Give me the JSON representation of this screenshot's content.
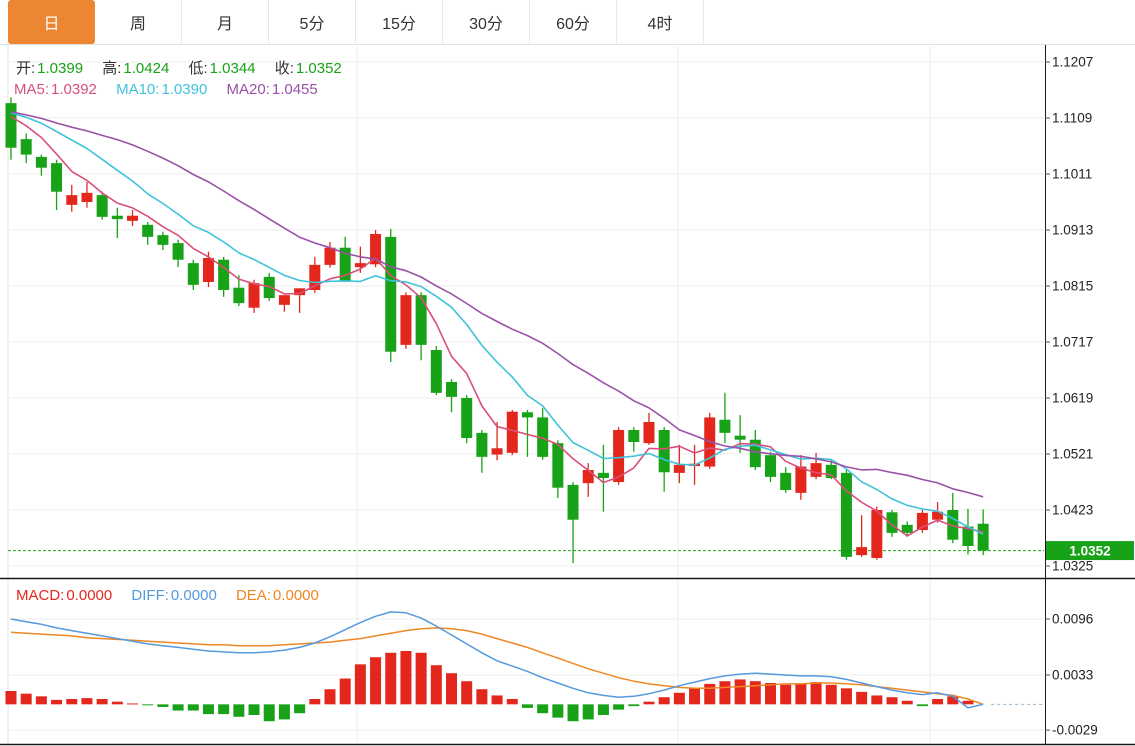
{
  "tabs": {
    "items": [
      {
        "label": "日",
        "active": true
      },
      {
        "label": "周",
        "active": false
      },
      {
        "label": "月",
        "active": false
      },
      {
        "label": "5分",
        "active": false
      },
      {
        "label": "15分",
        "active": false
      },
      {
        "label": "30分",
        "active": false
      },
      {
        "label": "60分",
        "active": false
      },
      {
        "label": "4时",
        "active": false
      }
    ]
  },
  "readout": {
    "ohlc": [
      {
        "label": "开:",
        "value": "1.0399"
      },
      {
        "label": "高:",
        "value": "1.0424"
      },
      {
        "label": "低:",
        "value": "1.0344"
      },
      {
        "label": "收:",
        "value": "1.0352"
      }
    ],
    "ma": [
      {
        "label": "MA5:",
        "value": "1.0392"
      },
      {
        "label": "MA10:",
        "value": "1.0390"
      },
      {
        "label": "MA20:",
        "value": "1.0455"
      }
    ],
    "macd": [
      {
        "label": "MACD:",
        "value": "0.0000"
      },
      {
        "label": "DIFF:",
        "value": "0.0000"
      },
      {
        "label": "DEA:",
        "value": "0.0000"
      }
    ]
  },
  "price_axis": {
    "tick_labels": [
      "1.1207",
      "1.1109",
      "1.1011",
      "1.0913",
      "1.0815",
      "1.0717",
      "1.0619",
      "1.0521",
      "1.0423",
      "1.0325"
    ],
    "current_badge": "1.0352"
  },
  "macd_axis": {
    "tick_labels": [
      "0.0096",
      "0.0033",
      "-0.0029"
    ]
  },
  "colors": {
    "up": "#e3271d",
    "down": "#18a218",
    "active_tab": "#ed8633",
    "ma5": "#d94f7a",
    "ma10": "#3fc3dc",
    "ma20": "#9a52a8",
    "diff": "#559add",
    "dea": "#ee8822",
    "axis_text": "#222222",
    "grid": "#ededed",
    "current_line": "#18a218"
  },
  "chart_data": [
    {
      "type": "candlestick",
      "panel": "price",
      "title": "",
      "xlabel": "",
      "ylabel": "",
      "grid": true,
      "legend_position": "top-left",
      "yticks": [
        1.1207,
        1.1109,
        1.1011,
        1.0913,
        1.0815,
        1.0717,
        1.0619,
        1.0521,
        1.0423,
        1.0325
      ],
      "ylim": [
        1.0304,
        1.1237
      ],
      "current_price": 1.0352,
      "overlays": [
        {
          "name": "MA5",
          "period": 5,
          "last_value": 1.0392
        },
        {
          "name": "MA10",
          "period": 10,
          "last_value": 1.039
        },
        {
          "name": "MA20",
          "period": 20,
          "last_value": 1.0455
        }
      ],
      "ohlc_last": {
        "open": 1.0399,
        "high": 1.0424,
        "low": 1.0344,
        "close": 1.0352
      },
      "candles_format": [
        "open",
        "high",
        "low",
        "close"
      ],
      "candles": [
        [
          1.1135,
          1.1145,
          1.1036,
          1.1057
        ],
        [
          1.1072,
          1.1082,
          1.103,
          1.1045
        ],
        [
          1.1041,
          1.1045,
          1.1008,
          1.1022
        ],
        [
          1.103,
          1.1036,
          1.0948,
          1.098
        ],
        [
          1.0957,
          1.0992,
          1.0945,
          1.0974
        ],
        [
          1.0962,
          1.0997,
          1.0952,
          1.0978
        ],
        [
          1.0974,
          1.098,
          1.0931,
          1.0936
        ],
        [
          1.0938,
          1.0952,
          1.0899,
          1.0932
        ],
        [
          1.0929,
          1.0948,
          1.092,
          1.0938
        ],
        [
          1.0922,
          1.0927,
          1.0887,
          1.0901
        ],
        [
          1.0904,
          1.091,
          1.0878,
          1.0887
        ],
        [
          1.089,
          1.0896,
          1.0848,
          1.0861
        ],
        [
          1.0855,
          1.0861,
          1.0808,
          1.0817
        ],
        [
          1.0822,
          1.0875,
          1.0813,
          1.0864
        ],
        [
          1.0861,
          1.0866,
          1.0796,
          1.0808
        ],
        [
          1.0812,
          1.0834,
          1.078,
          1.0785
        ],
        [
          1.0777,
          1.0826,
          1.0768,
          1.082
        ],
        [
          1.0831,
          1.0838,
          1.0789,
          1.0794
        ],
        [
          1.0782,
          1.0791,
          1.077,
          1.0799
        ],
        [
          1.0799,
          1.0806,
          1.0768,
          1.0811
        ],
        [
          1.0808,
          1.0866,
          1.0803,
          1.0852
        ],
        [
          1.0852,
          1.0892,
          1.0847,
          1.0882
        ],
        [
          1.0882,
          1.0901,
          1.0822,
          1.0824
        ],
        [
          1.0848,
          1.0884,
          1.0838,
          1.0855
        ],
        [
          1.0853,
          1.0913,
          1.0848,
          1.0906
        ],
        [
          1.0901,
          1.0915,
          1.0682,
          1.07
        ],
        [
          1.0712,
          1.0804,
          1.0705,
          1.0799
        ],
        [
          1.0799,
          1.0804,
          1.0685,
          1.0712
        ],
        [
          1.0703,
          1.071,
          1.0624,
          1.0628
        ],
        [
          1.0647,
          1.0652,
          1.0594,
          1.0621
        ],
        [
          1.0619,
          1.0624,
          1.054,
          1.0549
        ],
        [
          1.0558,
          1.0563,
          1.0488,
          1.0516
        ],
        [
          1.052,
          1.0577,
          1.051,
          1.0531
        ],
        [
          1.0523,
          1.0598,
          1.0519,
          1.0595
        ],
        [
          1.0594,
          1.0598,
          1.0516,
          1.0585
        ],
        [
          1.0585,
          1.0601,
          1.0511,
          1.0516
        ],
        [
          1.054,
          1.0545,
          1.0444,
          1.0462
        ],
        [
          1.0467,
          1.0472,
          1.033,
          1.0406
        ],
        [
          1.047,
          1.0505,
          1.0446,
          1.0493
        ],
        [
          1.0488,
          1.0537,
          1.042,
          1.0479
        ],
        [
          1.0472,
          1.0568,
          1.0467,
          1.0563
        ],
        [
          1.0563,
          1.0568,
          1.0525,
          1.0542
        ],
        [
          1.054,
          1.0593,
          1.0537,
          1.0577
        ],
        [
          1.0563,
          1.0568,
          1.0455,
          1.0489
        ],
        [
          1.0488,
          1.0537,
          1.047,
          1.0502
        ],
        [
          1.05,
          1.0537,
          1.0467,
          1.0504
        ],
        [
          1.0499,
          1.0593,
          1.0495,
          1.0585
        ],
        [
          1.0581,
          1.0628,
          1.054,
          1.0558
        ],
        [
          1.0553,
          1.0589,
          1.0523,
          1.0546
        ],
        [
          1.0546,
          1.0563,
          1.0493,
          1.0498
        ],
        [
          1.0519,
          1.0525,
          1.0472,
          1.0481
        ],
        [
          1.0488,
          1.0498,
          1.0453,
          1.0458
        ],
        [
          1.0453,
          1.0519,
          1.0441,
          1.0499
        ],
        [
          1.0481,
          1.0523,
          1.0477,
          1.0505
        ],
        [
          1.0502,
          1.0512,
          1.0477,
          1.0479
        ],
        [
          1.0488,
          1.0493,
          1.0336,
          1.0341
        ],
        [
          1.0344,
          1.0414,
          1.0341,
          1.0358
        ],
        [
          1.0339,
          1.0429,
          1.0336,
          1.0423
        ],
        [
          1.0419,
          1.0423,
          1.0376,
          1.0383
        ],
        [
          1.0397,
          1.0403,
          1.0376,
          1.0383
        ],
        [
          1.0388,
          1.0423,
          1.0383,
          1.0418
        ],
        [
          1.0406,
          1.0437,
          1.0401,
          1.042
        ],
        [
          1.0423,
          1.0453,
          1.0365,
          1.0371
        ],
        [
          1.0394,
          1.0425,
          1.0345,
          1.036
        ],
        [
          1.0399,
          1.0424,
          1.0344,
          1.0352
        ]
      ]
    },
    {
      "type": "bar",
      "panel": "macd",
      "title": "",
      "grid": true,
      "yticks": [
        0.0096,
        0.0033,
        -0.0029
      ],
      "ylim": [
        -0.0046,
        0.0142
      ],
      "series": [
        {
          "name": "MACD",
          "style": "histogram",
          "last_value": 0.0,
          "values": [
            0.0015,
            0.0012,
            0.0009,
            0.0005,
            0.0006,
            0.0007,
            0.0006,
            0.0003,
            0.0001,
            -0.0001,
            -0.0003,
            -0.0007,
            -0.0007,
            -0.0011,
            -0.0011,
            -0.0014,
            -0.0012,
            -0.0019,
            -0.0017,
            -0.001,
            0.0006,
            0.0017,
            0.0029,
            0.0045,
            0.0053,
            0.0058,
            0.006,
            0.0058,
            0.0044,
            0.0035,
            0.0026,
            0.0017,
            0.001,
            0.0006,
            -0.0004,
            -0.001,
            -0.0015,
            -0.0019,
            -0.0017,
            -0.0012,
            -0.0006,
            -0.0002,
            0.0003,
            0.0008,
            0.0013,
            0.0018,
            0.0023,
            0.0026,
            0.0028,
            0.0026,
            0.0024,
            0.0022,
            0.0023,
            0.0025,
            0.0022,
            0.0018,
            0.0014,
            0.001,
            0.0008,
            0.0004,
            -0.0002,
            0.0006,
            0.0009,
            0.0004,
            0.0
          ]
        },
        {
          "name": "DIFF",
          "style": "line",
          "last_value": 0.0,
          "values": [
            0.0096,
            0.0093,
            0.009,
            0.0086,
            0.0083,
            0.008,
            0.0077,
            0.0074,
            0.0071,
            0.0068,
            0.0066,
            0.0064,
            0.0062,
            0.006,
            0.0059,
            0.0058,
            0.0058,
            0.0059,
            0.0061,
            0.0064,
            0.0069,
            0.0076,
            0.0084,
            0.0092,
            0.0099,
            0.0104,
            0.0103,
            0.0097,
            0.0088,
            0.0078,
            0.0068,
            0.0058,
            0.0049,
            0.0043,
            0.0037,
            0.003,
            0.0024,
            0.0018,
            0.0013,
            0.001,
            0.0008,
            0.0009,
            0.0012,
            0.0016,
            0.0021,
            0.0025,
            0.0029,
            0.0032,
            0.0034,
            0.0035,
            0.0034,
            0.0033,
            0.0032,
            0.0032,
            0.0031,
            0.0028,
            0.0024,
            0.002,
            0.0016,
            0.0013,
            0.0011,
            0.0013,
            0.0009,
            -0.0004,
            0.0
          ]
        },
        {
          "name": "DEA",
          "style": "line",
          "last_value": 0.0,
          "values": [
            0.0081,
            0.008,
            0.0079,
            0.0078,
            0.0077,
            0.0075,
            0.0074,
            0.0073,
            0.0072,
            0.0071,
            0.007,
            0.0069,
            0.0068,
            0.0067,
            0.0067,
            0.0066,
            0.0066,
            0.0066,
            0.0067,
            0.0068,
            0.0069,
            0.007,
            0.0072,
            0.0074,
            0.0077,
            0.008,
            0.0083,
            0.0085,
            0.0086,
            0.0085,
            0.0083,
            0.0079,
            0.0074,
            0.0069,
            0.0064,
            0.0058,
            0.0052,
            0.0046,
            0.004,
            0.0035,
            0.003,
            0.0026,
            0.0023,
            0.0021,
            0.0019,
            0.0018,
            0.0018,
            0.0019,
            0.002,
            0.0021,
            0.0022,
            0.0023,
            0.0023,
            0.0024,
            0.0024,
            0.0023,
            0.0022,
            0.002,
            0.0018,
            0.0016,
            0.0014,
            0.0012,
            0.001,
            0.0006,
            0.0
          ]
        }
      ]
    }
  ]
}
